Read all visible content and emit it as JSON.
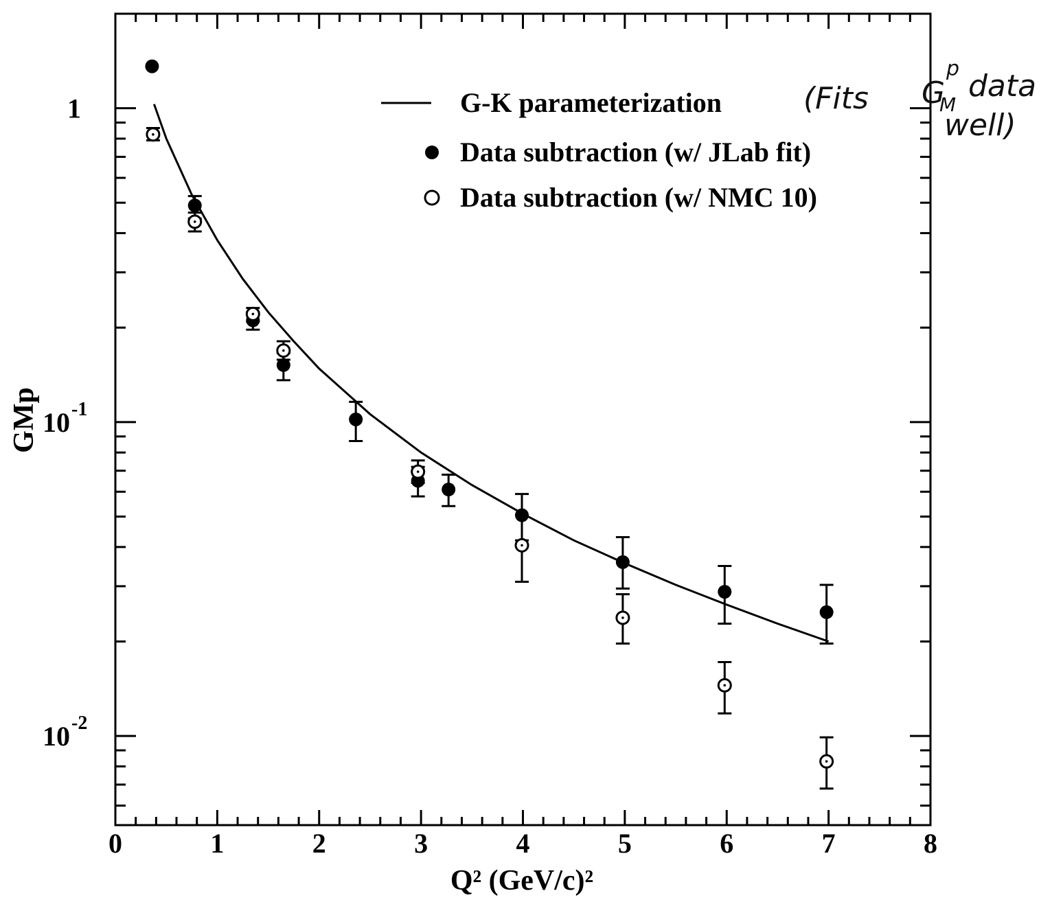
{
  "chart_data": {
    "type": "scatter",
    "title": "",
    "xlabel": "Q² (GeV/c)²",
    "ylabel": "GMp",
    "xlim": [
      0,
      8
    ],
    "ylim": [
      0.0052,
      2.0
    ],
    "yscale": "log",
    "grid": false,
    "legend_position": "top-right",
    "x_ticks": [
      "0",
      "1",
      "2",
      "3",
      "4",
      "5",
      "6",
      "7",
      "8"
    ],
    "y_ticks": [
      {
        "value": 1,
        "base": "1",
        "exp": ""
      },
      {
        "value": 0.1,
        "base": "10",
        "exp": "-1"
      },
      {
        "value": 0.01,
        "base": "10",
        "exp": "-2"
      }
    ],
    "series": [
      {
        "name": "G-K parameterization",
        "kind": "line",
        "x": [
          0.38,
          0.5,
          0.75,
          1.0,
          1.25,
          1.5,
          1.75,
          2.0,
          2.5,
          3.0,
          3.5,
          4.0,
          4.5,
          5.0,
          5.5,
          6.0,
          6.5,
          7.0
        ],
        "y": [
          1.03,
          0.8,
          0.53,
          0.38,
          0.286,
          0.224,
          0.181,
          0.148,
          0.106,
          0.08,
          0.063,
          0.051,
          0.042,
          0.0355,
          0.0303,
          0.0262,
          0.0228,
          0.02
        ]
      },
      {
        "name": "Data subtraction (w/ JLab fit)",
        "kind": "filled",
        "points": [
          {
            "x": 0.36,
            "y": 1.36
          },
          {
            "x": 0.78,
            "y": 0.49,
            "lo": 0.445,
            "hi": 0.525
          },
          {
            "x": 1.35,
            "y": 0.211,
            "lo": 0.197,
            "hi": 0.224
          },
          {
            "x": 1.65,
            "y": 0.152,
            "lo": 0.136,
            "hi": 0.166
          },
          {
            "x": 2.36,
            "y": 0.102,
            "lo": 0.087,
            "hi": 0.116
          },
          {
            "x": 2.97,
            "y": 0.065,
            "lo": 0.058,
            "hi": 0.072
          },
          {
            "x": 3.27,
            "y": 0.061,
            "lo": 0.054,
            "hi": 0.068
          },
          {
            "x": 3.99,
            "y": 0.0505,
            "lo": 0.042,
            "hi": 0.059
          },
          {
            "x": 4.98,
            "y": 0.0358,
            "lo": 0.0295,
            "hi": 0.043
          },
          {
            "x": 5.98,
            "y": 0.0288,
            "lo": 0.0228,
            "hi": 0.0348
          },
          {
            "x": 6.98,
            "y": 0.0248,
            "lo": 0.0197,
            "hi": 0.0303
          }
        ]
      },
      {
        "name": "Data subtraction (w/ NMC 10)",
        "kind": "open",
        "points": [
          {
            "x": 0.37,
            "y": 0.825,
            "lo": 0.79,
            "hi": 0.865
          },
          {
            "x": 0.78,
            "y": 0.435,
            "lo": 0.405,
            "hi": 0.465
          },
          {
            "x": 1.35,
            "y": 0.221,
            "lo": 0.209,
            "hi": 0.231
          },
          {
            "x": 1.65,
            "y": 0.169,
            "lo": 0.158,
            "hi": 0.181
          },
          {
            "x": 2.97,
            "y": 0.0695,
            "lo": 0.064,
            "hi": 0.0755
          },
          {
            "x": 3.99,
            "y": 0.0405,
            "lo": 0.031,
            "hi": 0.0505
          },
          {
            "x": 4.98,
            "y": 0.0238,
            "lo": 0.0197,
            "hi": 0.0283
          },
          {
            "x": 5.98,
            "y": 0.0145,
            "lo": 0.0118,
            "hi": 0.0172
          },
          {
            "x": 6.98,
            "y": 0.0083,
            "lo": 0.0068,
            "hi": 0.0099
          }
        ]
      }
    ],
    "annotations": [
      "(Fits",
      "G",
      "M",
      "p",
      "data",
      "well)"
    ]
  }
}
